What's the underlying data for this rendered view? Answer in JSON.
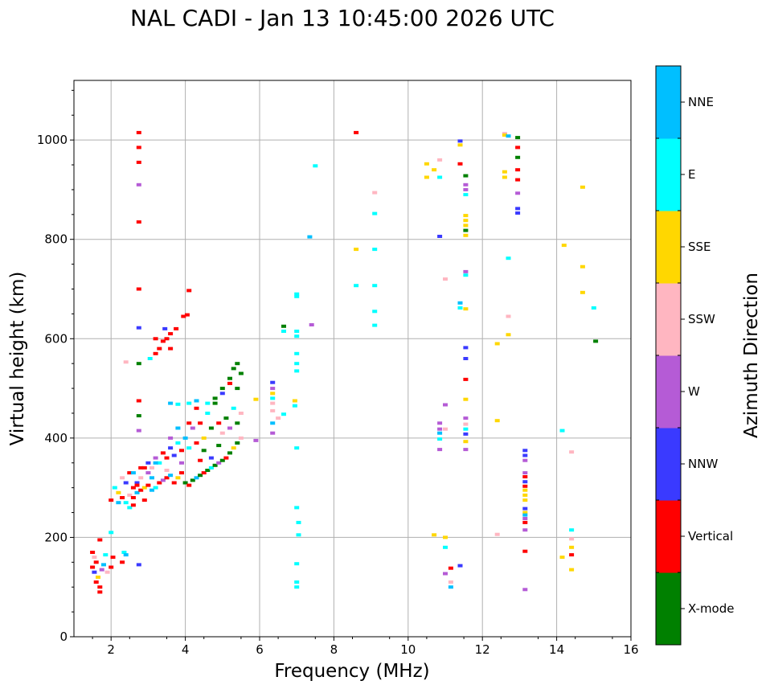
{
  "chart_data": {
    "type": "scatter",
    "title": "NAL CADI - Jan 13 10:45:00 2026 UTC",
    "xlabel": "Frequency (MHz)",
    "ylabel": "Virtual height (km)",
    "xlim": [
      1,
      16
    ],
    "ylim": [
      0,
      1120
    ],
    "xticks": [
      2,
      4,
      6,
      8,
      10,
      12,
      14,
      16
    ],
    "yticks": [
      0,
      200,
      400,
      600,
      800,
      1000
    ],
    "grid": true,
    "colorbar": {
      "label": "Azimuth Direction",
      "categories": [
        {
          "name": "X-mode",
          "color": "#008000"
        },
        {
          "name": "Vertical",
          "color": "#ff0000"
        },
        {
          "name": "NNW",
          "color": "#3a3aff"
        },
        {
          "name": "W",
          "color": "#b55bd6"
        },
        {
          "name": "SSW",
          "color": "#ffb6c1"
        },
        {
          "name": "SSE",
          "color": "#ffd700"
        },
        {
          "name": "E",
          "color": "#00ffff"
        },
        {
          "name": "NNE",
          "color": "#00bfff"
        }
      ]
    },
    "points": [
      [
        1.5,
        140,
        "Vertical"
      ],
      [
        1.55,
        130,
        "NNW"
      ],
      [
        1.6,
        150,
        "Vertical"
      ],
      [
        1.65,
        120,
        "SSE"
      ],
      [
        1.7,
        100,
        "Vertical"
      ],
      [
        1.55,
        160,
        "SSW"
      ],
      [
        1.75,
        135,
        "W"
      ],
      [
        1.8,
        145,
        "NNE"
      ],
      [
        1.6,
        110,
        "Vertical"
      ],
      [
        1.7,
        90,
        "Vertical"
      ],
      [
        1.9,
        130,
        "SSW"
      ],
      [
        2.0,
        140,
        "Vertical"
      ],
      [
        1.85,
        165,
        "E"
      ],
      [
        2.05,
        160,
        "Vertical"
      ],
      [
        2.0,
        210,
        "E"
      ],
      [
        1.5,
        170,
        "Vertical"
      ],
      [
        1.7,
        195,
        "Vertical"
      ],
      [
        2.35,
        170,
        "E"
      ],
      [
        2.4,
        165,
        "NNE"
      ],
      [
        2.3,
        150,
        "Vertical"
      ],
      [
        2.75,
        1015,
        "Vertical"
      ],
      [
        2.75,
        985,
        "Vertical"
      ],
      [
        2.75,
        955,
        "Vertical"
      ],
      [
        2.75,
        910,
        "W"
      ],
      [
        2.75,
        835,
        "Vertical"
      ],
      [
        2.75,
        700,
        "Vertical"
      ],
      [
        2.75,
        622,
        "NNW"
      ],
      [
        2.75,
        550,
        "X-mode"
      ],
      [
        2.75,
        475,
        "Vertical"
      ],
      [
        2.75,
        445,
        "X-mode"
      ],
      [
        2.75,
        415,
        "W"
      ],
      [
        2.75,
        145,
        "NNW"
      ],
      [
        3.05,
        560,
        "E"
      ],
      [
        3.2,
        570,
        "Vertical"
      ],
      [
        3.3,
        580,
        "Vertical"
      ],
      [
        3.4,
        595,
        "Vertical"
      ],
      [
        3.5,
        600,
        "Vertical"
      ],
      [
        3.6,
        610,
        "Vertical"
      ],
      [
        3.75,
        620,
        "Vertical"
      ],
      [
        3.95,
        645,
        "Vertical"
      ],
      [
        4.05,
        648,
        "Vertical"
      ],
      [
        4.1,
        697,
        "Vertical"
      ],
      [
        3.45,
        620,
        "NNW"
      ],
      [
        3.2,
        600,
        "Vertical"
      ],
      [
        2.4,
        553,
        "SSW"
      ],
      [
        3.6,
        580,
        "Vertical"
      ],
      [
        2.0,
        275,
        "Vertical"
      ],
      [
        2.2,
        270,
        "NNE"
      ],
      [
        2.3,
        280,
        "Vertical"
      ],
      [
        2.4,
        270,
        "E"
      ],
      [
        2.5,
        285,
        "SSW"
      ],
      [
        2.6,
        280,
        "Vertical"
      ],
      [
        2.7,
        290,
        "NNE"
      ],
      [
        2.8,
        295,
        "Vertical"
      ],
      [
        2.9,
        300,
        "SSE"
      ],
      [
        3.0,
        305,
        "Vertical"
      ],
      [
        3.1,
        295,
        "NNE"
      ],
      [
        3.2,
        300,
        "E"
      ],
      [
        3.3,
        310,
        "Vertical"
      ],
      [
        3.4,
        315,
        "W"
      ],
      [
        3.5,
        320,
        "Vertical"
      ],
      [
        3.6,
        325,
        "NNE"
      ],
      [
        3.7,
        310,
        "Vertical"
      ],
      [
        3.8,
        320,
        "SSE"
      ],
      [
        3.9,
        330,
        "Vertical"
      ],
      [
        4.0,
        310,
        "X-mode"
      ],
      [
        4.1,
        305,
        "Vertical"
      ],
      [
        4.2,
        315,
        "X-mode"
      ],
      [
        4.3,
        320,
        "NNE"
      ],
      [
        4.4,
        325,
        "X-mode"
      ],
      [
        4.5,
        330,
        "Vertical"
      ],
      [
        4.6,
        335,
        "X-mode"
      ],
      [
        4.7,
        340,
        "E"
      ],
      [
        4.8,
        345,
        "X-mode"
      ],
      [
        4.9,
        350,
        "W"
      ],
      [
        5.0,
        355,
        "X-mode"
      ],
      [
        5.1,
        360,
        "Vertical"
      ],
      [
        5.2,
        370,
        "X-mode"
      ],
      [
        5.3,
        380,
        "SSE"
      ],
      [
        5.4,
        390,
        "X-mode"
      ],
      [
        5.5,
        400,
        "SSW"
      ],
      [
        2.3,
        320,
        "SSW"
      ],
      [
        2.5,
        330,
        "Vertical"
      ],
      [
        2.7,
        310,
        "NNW"
      ],
      [
        2.9,
        340,
        "Vertical"
      ],
      [
        3.1,
        340,
        "SSW"
      ],
      [
        3.3,
        350,
        "E"
      ],
      [
        3.5,
        360,
        "Vertical"
      ],
      [
        3.7,
        365,
        "NNW"
      ],
      [
        3.9,
        375,
        "Vertical"
      ],
      [
        4.1,
        380,
        "E"
      ],
      [
        4.3,
        390,
        "Vertical"
      ],
      [
        4.5,
        400,
        "SSE"
      ],
      [
        4.7,
        420,
        "X-mode"
      ],
      [
        4.9,
        430,
        "Vertical"
      ],
      [
        5.1,
        440,
        "X-mode"
      ],
      [
        5.3,
        460,
        "E"
      ],
      [
        5.4,
        500,
        "X-mode"
      ],
      [
        5.5,
        530,
        "X-mode"
      ],
      [
        5.2,
        520,
        "X-mode"
      ],
      [
        5.0,
        490,
        "NNW"
      ],
      [
        4.8,
        470,
        "X-mode"
      ],
      [
        4.6,
        450,
        "E"
      ],
      [
        4.4,
        430,
        "Vertical"
      ],
      [
        4.2,
        420,
        "W"
      ],
      [
        4.0,
        400,
        "NNE"
      ],
      [
        3.8,
        390,
        "E"
      ],
      [
        3.6,
        380,
        "NNW"
      ],
      [
        3.4,
        370,
        "Vertical"
      ],
      [
        3.2,
        350,
        "NNE"
      ],
      [
        3.0,
        330,
        "W"
      ],
      [
        2.8,
        320,
        "SSW"
      ],
      [
        2.6,
        300,
        "Vertical"
      ],
      [
        2.4,
        310,
        "NNW"
      ],
      [
        2.2,
        290,
        "SSE"
      ],
      [
        2.1,
        300,
        "E"
      ],
      [
        2.6,
        330,
        "NNE"
      ],
      [
        2.8,
        340,
        "Vertical"
      ],
      [
        3.0,
        350,
        "NNW"
      ],
      [
        3.2,
        360,
        "W"
      ],
      [
        3.6,
        400,
        "W"
      ],
      [
        3.8,
        420,
        "NNE"
      ],
      [
        4.1,
        430,
        "Vertical"
      ],
      [
        4.3,
        460,
        "Vertical"
      ],
      [
        4.6,
        470,
        "E"
      ],
      [
        4.8,
        480,
        "X-mode"
      ],
      [
        5.0,
        500,
        "X-mode"
      ],
      [
        5.2,
        510,
        "Vertical"
      ],
      [
        5.3,
        540,
        "X-mode"
      ],
      [
        5.4,
        550,
        "X-mode"
      ],
      [
        4.5,
        375,
        "X-mode"
      ],
      [
        4.7,
        360,
        "NNW"
      ],
      [
        5.0,
        410,
        "SSW"
      ],
      [
        5.2,
        420,
        "W"
      ],
      [
        5.4,
        430,
        "X-mode"
      ],
      [
        5.5,
        450,
        "SSW"
      ],
      [
        4.9,
        385,
        "X-mode"
      ],
      [
        4.4,
        355,
        "Vertical"
      ],
      [
        3.9,
        350,
        "W"
      ],
      [
        3.5,
        335,
        "SSW"
      ],
      [
        3.1,
        320,
        "NNE"
      ],
      [
        2.7,
        305,
        "Vertical"
      ],
      [
        2.9,
        275,
        "Vertical"
      ],
      [
        2.5,
        260,
        "E"
      ],
      [
        2.6,
        265,
        "Vertical"
      ],
      [
        3.6,
        470,
        "NNE"
      ],
      [
        3.8,
        468,
        "E"
      ],
      [
        4.1,
        470,
        "E"
      ],
      [
        4.3,
        475,
        "NNE"
      ],
      [
        5.9,
        478,
        "SSE"
      ],
      [
        5.9,
        395,
        "W"
      ],
      [
        6.35,
        500,
        "W"
      ],
      [
        6.35,
        490,
        "SSE"
      ],
      [
        6.35,
        480,
        "E"
      ],
      [
        6.35,
        470,
        "SSW"
      ],
      [
        6.35,
        455,
        "SSW"
      ],
      [
        6.35,
        430,
        "NNE"
      ],
      [
        6.35,
        410,
        "W"
      ],
      [
        6.35,
        512,
        "NNW"
      ],
      [
        6.5,
        440,
        "SSW"
      ],
      [
        6.65,
        448,
        "E"
      ],
      [
        6.65,
        625,
        "X-mode"
      ],
      [
        6.65,
        615,
        "E"
      ],
      [
        6.95,
        465,
        "E"
      ],
      [
        6.95,
        475,
        "SSE"
      ],
      [
        7.0,
        690,
        "E"
      ],
      [
        7.0,
        685,
        "E"
      ],
      [
        7.0,
        615,
        "E"
      ],
      [
        7.0,
        605,
        "E"
      ],
      [
        7.0,
        570,
        "E"
      ],
      [
        7.0,
        550,
        "E"
      ],
      [
        7.0,
        535,
        "E"
      ],
      [
        7.0,
        380,
        "E"
      ],
      [
        7.0,
        260,
        "E"
      ],
      [
        7.05,
        230,
        "E"
      ],
      [
        7.05,
        205,
        "E"
      ],
      [
        7.0,
        147,
        "E"
      ],
      [
        7.0,
        110,
        "E"
      ],
      [
        7.0,
        100,
        "E"
      ],
      [
        7.4,
        628,
        "W"
      ],
      [
        7.35,
        805,
        "NNE"
      ],
      [
        7.5,
        948,
        "E"
      ],
      [
        8.6,
        1015,
        "Vertical"
      ],
      [
        8.6,
        780,
        "SSE"
      ],
      [
        8.6,
        707,
        "E"
      ],
      [
        9.1,
        894,
        "SSW"
      ],
      [
        9.1,
        852,
        "E"
      ],
      [
        9.1,
        780,
        "E"
      ],
      [
        9.1,
        707,
        "E"
      ],
      [
        9.1,
        655,
        "E"
      ],
      [
        9.1,
        627,
        "E"
      ],
      [
        10.5,
        952,
        "SSE"
      ],
      [
        10.5,
        925,
        "SSE"
      ],
      [
        10.7,
        940,
        "SSE"
      ],
      [
        10.85,
        960,
        "SSW"
      ],
      [
        10.85,
        925,
        "E"
      ],
      [
        10.85,
        806,
        "NNW"
      ],
      [
        10.7,
        205,
        "SSE"
      ],
      [
        10.85,
        430,
        "W"
      ],
      [
        10.85,
        418,
        "W"
      ],
      [
        10.85,
        410,
        "NNE"
      ],
      [
        10.85,
        398,
        "E"
      ],
      [
        10.85,
        377,
        "W"
      ],
      [
        11.0,
        720,
        "SSW"
      ],
      [
        11.0,
        467,
        "W"
      ],
      [
        11.0,
        418,
        "SSW"
      ],
      [
        11.0,
        200,
        "SSE"
      ],
      [
        11.0,
        180,
        "E"
      ],
      [
        11.0,
        127,
        "W"
      ],
      [
        11.15,
        138,
        "Vertical"
      ],
      [
        11.15,
        110,
        "SSW"
      ],
      [
        11.15,
        100,
        "NNE"
      ],
      [
        11.4,
        998,
        "NNW"
      ],
      [
        11.4,
        990,
        "SSE"
      ],
      [
        11.4,
        952,
        "Vertical"
      ],
      [
        11.4,
        672,
        "NNE"
      ],
      [
        11.4,
        662,
        "E"
      ],
      [
        11.4,
        143,
        "NNW"
      ],
      [
        11.55,
        928,
        "X-mode"
      ],
      [
        11.55,
        910,
        "W"
      ],
      [
        11.55,
        900,
        "W"
      ],
      [
        11.55,
        890,
        "E"
      ],
      [
        11.55,
        848,
        "SSE"
      ],
      [
        11.55,
        838,
        "SSE"
      ],
      [
        11.55,
        828,
        "SSE"
      ],
      [
        11.55,
        818,
        "X-mode"
      ],
      [
        11.55,
        808,
        "SSE"
      ],
      [
        11.55,
        735,
        "W"
      ],
      [
        11.55,
        728,
        "E"
      ],
      [
        11.55,
        660,
        "SSE"
      ],
      [
        11.55,
        582,
        "NNW"
      ],
      [
        11.55,
        560,
        "NNW"
      ],
      [
        11.55,
        518,
        "Vertical"
      ],
      [
        11.55,
        478,
        "SSE"
      ],
      [
        11.55,
        440,
        "W"
      ],
      [
        11.55,
        428,
        "SSW"
      ],
      [
        11.55,
        418,
        "E"
      ],
      [
        11.55,
        408,
        "NNW"
      ],
      [
        11.55,
        393,
        "SSE"
      ],
      [
        11.55,
        377,
        "W"
      ],
      [
        12.4,
        590,
        "SSE"
      ],
      [
        12.4,
        435,
        "SSE"
      ],
      [
        12.4,
        206,
        "SSW"
      ],
      [
        12.6,
        1013,
        "SSW"
      ],
      [
        12.6,
        1010,
        "SSE"
      ],
      [
        12.7,
        1008,
        "NNE"
      ],
      [
        12.6,
        936,
        "SSE"
      ],
      [
        12.6,
        925,
        "SSE"
      ],
      [
        12.7,
        645,
        "SSW"
      ],
      [
        12.7,
        608,
        "SSE"
      ],
      [
        12.7,
        762,
        "E"
      ],
      [
        12.95,
        1005,
        "X-mode"
      ],
      [
        12.95,
        985,
        "Vertical"
      ],
      [
        12.95,
        965,
        "X-mode"
      ],
      [
        12.95,
        940,
        "Vertical"
      ],
      [
        12.95,
        920,
        "Vertical"
      ],
      [
        12.95,
        893,
        "W"
      ],
      [
        12.95,
        862,
        "NNW"
      ],
      [
        12.95,
        853,
        "NNW"
      ],
      [
        13.15,
        375,
        "NNW"
      ],
      [
        13.15,
        365,
        "NNW"
      ],
      [
        13.15,
        355,
        "W"
      ],
      [
        13.15,
        330,
        "W"
      ],
      [
        13.15,
        322,
        "Vertical"
      ],
      [
        13.15,
        312,
        "NNW"
      ],
      [
        13.15,
        303,
        "Vertical"
      ],
      [
        13.15,
        295,
        "SSE"
      ],
      [
        13.15,
        285,
        "SSE"
      ],
      [
        13.15,
        275,
        "SSE"
      ],
      [
        13.15,
        258,
        "NNW"
      ],
      [
        13.15,
        250,
        "SSE"
      ],
      [
        13.15,
        245,
        "NNE"
      ],
      [
        13.15,
        238,
        "W"
      ],
      [
        13.15,
        230,
        "Vertical"
      ],
      [
        13.15,
        215,
        "W"
      ],
      [
        13.15,
        172,
        "Vertical"
      ],
      [
        13.15,
        95,
        "W"
      ],
      [
        14.2,
        788,
        "SSE"
      ],
      [
        14.15,
        415,
        "E"
      ],
      [
        14.15,
        160,
        "SSE"
      ],
      [
        14.4,
        372,
        "SSW"
      ],
      [
        14.4,
        215,
        "E"
      ],
      [
        14.4,
        197,
        "SSW"
      ],
      [
        14.4,
        180,
        "SSE"
      ],
      [
        14.4,
        165,
        "Vertical"
      ],
      [
        14.4,
        135,
        "SSE"
      ],
      [
        14.7,
        905,
        "SSE"
      ],
      [
        14.7,
        745,
        "SSE"
      ],
      [
        14.7,
        693,
        "SSE"
      ],
      [
        15.0,
        662,
        "E"
      ],
      [
        15.05,
        595,
        "X-mode"
      ]
    ]
  }
}
